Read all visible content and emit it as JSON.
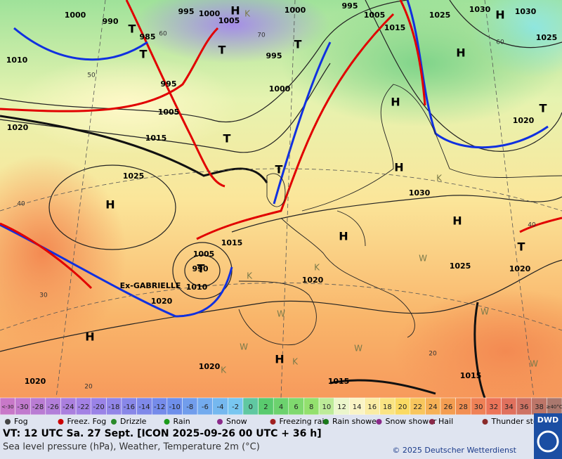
{
  "map": {
    "pressure_labels": [
      "1000",
      "990",
      "995",
      "1000",
      "1005",
      "1000",
      "995",
      "1005",
      "1025",
      "1030",
      "1030",
      "1025",
      "1015",
      "985",
      "1010",
      "995",
      "1000",
      "995",
      "1005",
      "1020",
      "1015",
      "1025",
      "1030",
      "1020",
      "1015",
      "1005",
      "1025",
      "1020",
      "1020",
      "1010",
      "1020",
      "1020",
      "1020",
      "1015",
      "1015",
      "990"
    ],
    "systems": [
      "H",
      "H",
      "T",
      "T",
      "T",
      "T",
      "H",
      "H",
      "H",
      "T",
      "T",
      "T",
      "H",
      "H",
      "H",
      "T",
      "T",
      "H",
      "H"
    ],
    "minor_labels": [
      "K",
      "K",
      "K",
      "K",
      "K",
      "K",
      "W",
      "W",
      "W",
      "W",
      "W",
      "W"
    ],
    "contour_labels": [
      "60",
      "50",
      "60",
      "40",
      "30",
      "40",
      "20",
      "20",
      "70"
    ],
    "storm_name": "Ex-GABRIELLE"
  },
  "temperature_scale": [
    "<-30",
    "-30",
    "-28",
    "-26",
    "-24",
    "-22",
    "-20",
    "-18",
    "-16",
    "-14",
    "-12",
    "-10",
    "-8",
    "-6",
    "-4",
    "-2",
    "0",
    "2",
    "4",
    "6",
    "8",
    "10",
    "12",
    "14",
    "16",
    "18",
    "20",
    "22",
    "24",
    "26",
    "28",
    "30",
    "32",
    "34",
    "36",
    "38",
    "≥40°C"
  ],
  "weather_legend": [
    "Fog",
    "Freez. Fog",
    "Drizzle",
    "Rain",
    "Snow",
    "Freezing rain",
    "Rain shower",
    "Snow shower",
    "Hail",
    "Thunder storm"
  ],
  "footer": {
    "valid_time": "VT: 12 UTC Sa.  27 Sept. [ICON 2025-09-26  00 UTC + 36 h]",
    "subtitle": "Sea level pressure (hPa), Weather, Temperature 2m (°C)",
    "copyright": "© 2025 Deutscher Wetterdienst",
    "logo": "DWD"
  }
}
